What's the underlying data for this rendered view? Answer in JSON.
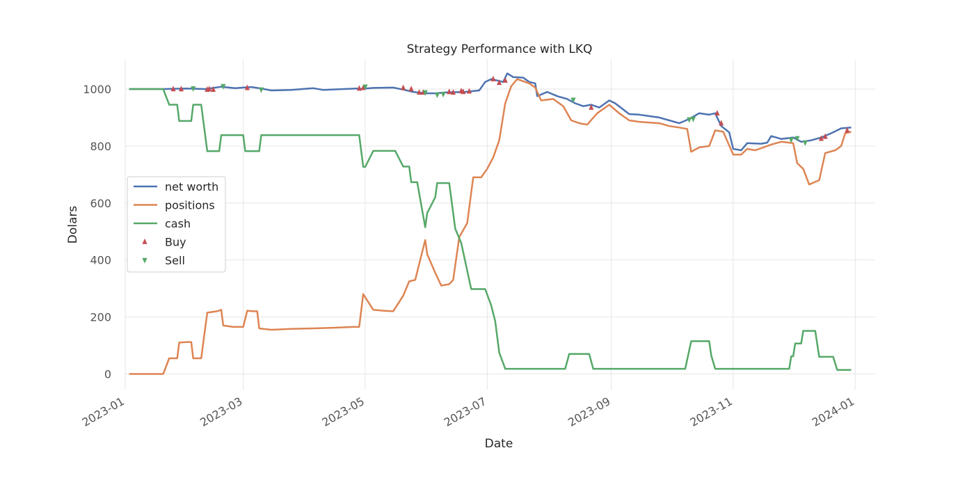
{
  "chart_data": {
    "type": "line",
    "title": "Strategy Performance with LKQ",
    "xlabel": "Date",
    "ylabel": "Dolars",
    "xlim": [
      "2023-01-01",
      "2024-01-11"
    ],
    "ylim": [
      -55,
      1105
    ],
    "grid": true,
    "legend_position": "center-left",
    "x_ticks": [
      "2023-01",
      "2023-03",
      "2023-05",
      "2023-07",
      "2023-09",
      "2023-11",
      "2024-01"
    ],
    "y_ticks": [
      0,
      200,
      400,
      600,
      800,
      1000
    ],
    "series": [
      {
        "name": "net worth",
        "color": "#4c72b0",
        "points": [
          [
            "2023-01-03",
            1000
          ],
          [
            "2023-01-20",
            1000
          ],
          [
            "2023-02-01",
            1002
          ],
          [
            "2023-02-10",
            1000
          ],
          [
            "2023-02-18",
            1008
          ],
          [
            "2023-02-25",
            1003
          ],
          [
            "2023-03-01",
            1005
          ],
          [
            "2023-03-05",
            1007
          ],
          [
            "2023-03-10",
            1002
          ],
          [
            "2023-03-15",
            995
          ],
          [
            "2023-03-25",
            997
          ],
          [
            "2023-04-05",
            1003
          ],
          [
            "2023-04-10",
            997
          ],
          [
            "2023-04-20",
            1000
          ],
          [
            "2023-04-27",
            1002
          ],
          [
            "2023-04-28",
            1000
          ],
          [
            "2023-05-05",
            1004
          ],
          [
            "2023-05-15",
            1005
          ],
          [
            "2023-05-20",
            998
          ],
          [
            "2023-05-25",
            990
          ],
          [
            "2023-05-31",
            985
          ],
          [
            "2023-06-05",
            985
          ],
          [
            "2023-06-10",
            988
          ],
          [
            "2023-06-20",
            990
          ],
          [
            "2023-06-27",
            995
          ],
          [
            "2023-06-30",
            1025
          ],
          [
            "2023-07-03",
            1035
          ],
          [
            "2023-07-06",
            1030
          ],
          [
            "2023-07-09",
            1025
          ],
          [
            "2023-07-11",
            1055
          ],
          [
            "2023-07-14",
            1042
          ],
          [
            "2023-07-19",
            1040
          ],
          [
            "2023-07-22",
            1025
          ],
          [
            "2023-07-25",
            1020
          ],
          [
            "2023-07-26",
            975
          ],
          [
            "2023-07-31",
            990
          ],
          [
            "2023-08-05",
            975
          ],
          [
            "2023-08-10",
            965
          ],
          [
            "2023-08-14",
            950
          ],
          [
            "2023-08-18",
            940
          ],
          [
            "2023-08-22",
            945
          ],
          [
            "2023-08-26",
            935
          ],
          [
            "2023-08-31",
            960
          ],
          [
            "2023-09-03",
            950
          ],
          [
            "2023-09-10",
            912
          ],
          [
            "2023-09-15",
            910
          ],
          [
            "2023-09-20",
            905
          ],
          [
            "2023-09-25",
            900
          ],
          [
            "2023-09-30",
            890
          ],
          [
            "2023-10-05",
            880
          ],
          [
            "2023-10-10",
            895
          ],
          [
            "2023-10-15",
            915
          ],
          [
            "2023-10-20",
            910
          ],
          [
            "2023-10-23",
            915
          ],
          [
            "2023-10-26",
            870
          ],
          [
            "2023-10-30",
            848
          ],
          [
            "2023-11-01",
            790
          ],
          [
            "2023-11-05",
            785
          ],
          [
            "2023-11-08",
            810
          ],
          [
            "2023-11-15",
            808
          ],
          [
            "2023-11-18",
            812
          ],
          [
            "2023-11-20",
            835
          ],
          [
            "2023-11-25",
            825
          ],
          [
            "2023-12-01",
            830
          ],
          [
            "2023-12-05",
            815
          ],
          [
            "2023-12-10",
            820
          ],
          [
            "2023-12-15",
            830
          ],
          [
            "2023-12-20",
            845
          ],
          [
            "2023-12-25",
            862
          ],
          [
            "2023-12-30",
            865
          ]
        ]
      },
      {
        "name": "positions",
        "color": "#dd8452",
        "points": [
          [
            "2023-01-03",
            0
          ],
          [
            "2023-01-20",
            0
          ],
          [
            "2023-01-23",
            55
          ],
          [
            "2023-01-27",
            55
          ],
          [
            "2023-01-28",
            110
          ],
          [
            "2023-02-01",
            112
          ],
          [
            "2023-02-03",
            112
          ],
          [
            "2023-02-04",
            55
          ],
          [
            "2023-02-08",
            55
          ],
          [
            "2023-02-11",
            215
          ],
          [
            "2023-02-16",
            220
          ],
          [
            "2023-02-18",
            225
          ],
          [
            "2023-02-19",
            170
          ],
          [
            "2023-02-24",
            165
          ],
          [
            "2023-03-01",
            165
          ],
          [
            "2023-03-03",
            222
          ],
          [
            "2023-03-06",
            220
          ],
          [
            "2023-03-08",
            220
          ],
          [
            "2023-03-09",
            160
          ],
          [
            "2023-03-15",
            155
          ],
          [
            "2023-03-25",
            158
          ],
          [
            "2023-04-05",
            160
          ],
          [
            "2023-04-15",
            162
          ],
          [
            "2023-04-25",
            165
          ],
          [
            "2023-04-28",
            165
          ],
          [
            "2023-04-30",
            280
          ],
          [
            "2023-05-05",
            225
          ],
          [
            "2023-05-10",
            222
          ],
          [
            "2023-05-15",
            220
          ],
          [
            "2023-05-20",
            275
          ],
          [
            "2023-05-23",
            325
          ],
          [
            "2023-05-26",
            330
          ],
          [
            "2023-05-31",
            470
          ],
          [
            "2023-06-01",
            420
          ],
          [
            "2023-06-05",
            355
          ],
          [
            "2023-06-08",
            310
          ],
          [
            "2023-06-12",
            315
          ],
          [
            "2023-06-14",
            330
          ],
          [
            "2023-06-17",
            480
          ],
          [
            "2023-06-21",
            530
          ],
          [
            "2023-06-24",
            690
          ],
          [
            "2023-06-28",
            690
          ],
          [
            "2023-07-01",
            720
          ],
          [
            "2023-07-04",
            760
          ],
          [
            "2023-07-07",
            820
          ],
          [
            "2023-07-10",
            950
          ],
          [
            "2023-07-13",
            1010
          ],
          [
            "2023-07-16",
            1035
          ],
          [
            "2023-07-22",
            1020
          ],
          [
            "2023-07-25",
            1005
          ],
          [
            "2023-07-28",
            960
          ],
          [
            "2023-08-03",
            965
          ],
          [
            "2023-08-08",
            940
          ],
          [
            "2023-08-12",
            890
          ],
          [
            "2023-08-16",
            880
          ],
          [
            "2023-08-20",
            875
          ],
          [
            "2023-08-25",
            915
          ],
          [
            "2023-08-31",
            945
          ],
          [
            "2023-09-05",
            915
          ],
          [
            "2023-09-10",
            890
          ],
          [
            "2023-09-15",
            885
          ],
          [
            "2023-09-25",
            880
          ],
          [
            "2023-09-30",
            870
          ],
          [
            "2023-10-05",
            865
          ],
          [
            "2023-10-09",
            860
          ],
          [
            "2023-10-11",
            780
          ],
          [
            "2023-10-15",
            795
          ],
          [
            "2023-10-20",
            800
          ],
          [
            "2023-10-23",
            855
          ],
          [
            "2023-10-27",
            850
          ],
          [
            "2023-11-01",
            770
          ],
          [
            "2023-11-05",
            770
          ],
          [
            "2023-11-08",
            790
          ],
          [
            "2023-11-12",
            785
          ],
          [
            "2023-11-16",
            795
          ],
          [
            "2023-11-20",
            805
          ],
          [
            "2023-11-25",
            815
          ],
          [
            "2023-12-01",
            810
          ],
          [
            "2023-12-03",
            740
          ],
          [
            "2023-12-06",
            720
          ],
          [
            "2023-12-09",
            665
          ],
          [
            "2023-12-14",
            680
          ],
          [
            "2023-12-17",
            775
          ],
          [
            "2023-12-22",
            785
          ],
          [
            "2023-12-25",
            800
          ],
          [
            "2023-12-27",
            845
          ],
          [
            "2023-12-30",
            850
          ]
        ]
      },
      {
        "name": "cash",
        "color": "#55a868",
        "points": [
          [
            "2023-01-03",
            1000
          ],
          [
            "2023-01-20",
            1000
          ],
          [
            "2023-01-23",
            945
          ],
          [
            "2023-01-27",
            945
          ],
          [
            "2023-01-28",
            888
          ],
          [
            "2023-02-03",
            888
          ],
          [
            "2023-02-04",
            945
          ],
          [
            "2023-02-08",
            945
          ],
          [
            "2023-02-11",
            782
          ],
          [
            "2023-02-17",
            782
          ],
          [
            "2023-02-18",
            838
          ],
          [
            "2023-03-01",
            838
          ],
          [
            "2023-03-02",
            782
          ],
          [
            "2023-03-09",
            782
          ],
          [
            "2023-03-10",
            838
          ],
          [
            "2023-04-28",
            838
          ],
          [
            "2023-04-30",
            727
          ],
          [
            "2023-05-01",
            727
          ],
          [
            "2023-05-05",
            783
          ],
          [
            "2023-05-16",
            783
          ],
          [
            "2023-05-20",
            728
          ],
          [
            "2023-05-23",
            728
          ],
          [
            "2023-05-24",
            673
          ],
          [
            "2023-05-27",
            673
          ],
          [
            "2023-05-31",
            515
          ],
          [
            "2023-06-01",
            565
          ],
          [
            "2023-06-05",
            620
          ],
          [
            "2023-06-06",
            670
          ],
          [
            "2023-06-12",
            670
          ],
          [
            "2023-06-15",
            510
          ],
          [
            "2023-06-18",
            460
          ],
          [
            "2023-06-23",
            298
          ],
          [
            "2023-06-30",
            298
          ],
          [
            "2023-07-03",
            240
          ],
          [
            "2023-07-05",
            185
          ],
          [
            "2023-07-07",
            75
          ],
          [
            "2023-07-10",
            18
          ],
          [
            "2023-08-09",
            18
          ],
          [
            "2023-08-11",
            70
          ],
          [
            "2023-08-21",
            70
          ],
          [
            "2023-08-23",
            18
          ],
          [
            "2023-10-08",
            18
          ],
          [
            "2023-10-11",
            115
          ],
          [
            "2023-10-20",
            115
          ],
          [
            "2023-10-21",
            65
          ],
          [
            "2023-10-23",
            18
          ],
          [
            "2023-11-29",
            18
          ],
          [
            "2023-11-30",
            62
          ],
          [
            "2023-12-01",
            62
          ],
          [
            "2023-12-02",
            107
          ],
          [
            "2023-12-05",
            107
          ],
          [
            "2023-12-06",
            151
          ],
          [
            "2023-12-12",
            151
          ],
          [
            "2023-12-14",
            60
          ],
          [
            "2023-12-21",
            60
          ],
          [
            "2023-12-23",
            14
          ],
          [
            "2023-12-30",
            14
          ]
        ]
      }
    ],
    "markers": [
      {
        "name": "Buy",
        "color": "#c44e52",
        "shape": "triangle-up",
        "points": [
          [
            "2023-01-25",
            1000
          ],
          [
            "2023-01-29",
            1000
          ],
          [
            "2023-02-11",
            998
          ],
          [
            "2023-02-12",
            1000
          ],
          [
            "2023-02-14",
            998
          ],
          [
            "2023-03-03",
            1004
          ],
          [
            "2023-04-28",
            1002
          ],
          [
            "2023-04-30",
            1004
          ],
          [
            "2023-05-20",
            1004
          ],
          [
            "2023-05-24",
            1000
          ],
          [
            "2023-05-28",
            988
          ],
          [
            "2023-05-30",
            988
          ],
          [
            "2023-06-12",
            990
          ],
          [
            "2023-06-14",
            988
          ],
          [
            "2023-06-18",
            993
          ],
          [
            "2023-06-19",
            990
          ],
          [
            "2023-06-22",
            992
          ],
          [
            "2023-07-04",
            1035
          ],
          [
            "2023-07-07",
            1022
          ],
          [
            "2023-07-10",
            1030
          ],
          [
            "2023-08-22",
            935
          ],
          [
            "2023-10-24",
            915
          ],
          [
            "2023-10-26",
            880
          ],
          [
            "2023-12-15",
            826
          ],
          [
            "2023-12-17",
            833
          ],
          [
            "2023-12-28",
            855
          ]
        ]
      },
      {
        "name": "Sell",
        "color": "#55a868",
        "shape": "triangle-down",
        "points": [
          [
            "2023-02-04",
            1002
          ],
          [
            "2023-02-19",
            1010
          ],
          [
            "2023-03-10",
            998
          ],
          [
            "2023-05-01",
            1008
          ],
          [
            "2023-05-31",
            988
          ],
          [
            "2023-06-06",
            980
          ],
          [
            "2023-06-09",
            982
          ],
          [
            "2023-08-13",
            962
          ],
          [
            "2023-10-10",
            893
          ],
          [
            "2023-10-12",
            895
          ],
          [
            "2023-11-30",
            822
          ],
          [
            "2023-12-03",
            827
          ],
          [
            "2023-12-07",
            812
          ]
        ]
      }
    ]
  }
}
